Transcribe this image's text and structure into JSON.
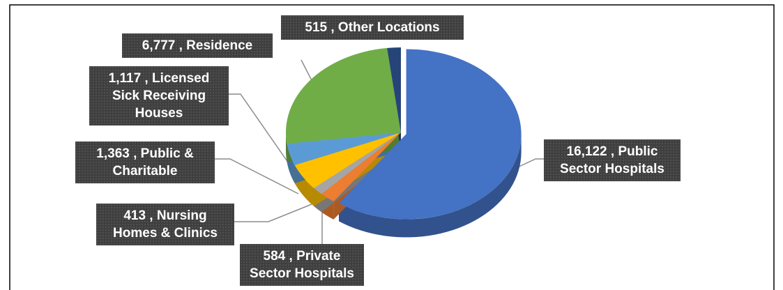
{
  "chart_data": {
    "type": "pie",
    "values": [
      16122,
      584,
      413,
      1363,
      1117,
      6777,
      515
    ],
    "value_labels": [
      "16,122 , Public Sector Hospitals",
      "584 , Private Sector Hospitals",
      "413 , Nursing Homes & Clinics",
      "1,363 , Public & Charitable",
      "1,117 , Licensed Sick Receiving Houses",
      "6,777 , Residence",
      "515 , Other Locations"
    ],
    "colors": [
      "#4472c4",
      "#ed7d31",
      "#a5a5a5",
      "#ffc000",
      "#5b9bd5",
      "#70ad47",
      "#264478"
    ]
  }
}
